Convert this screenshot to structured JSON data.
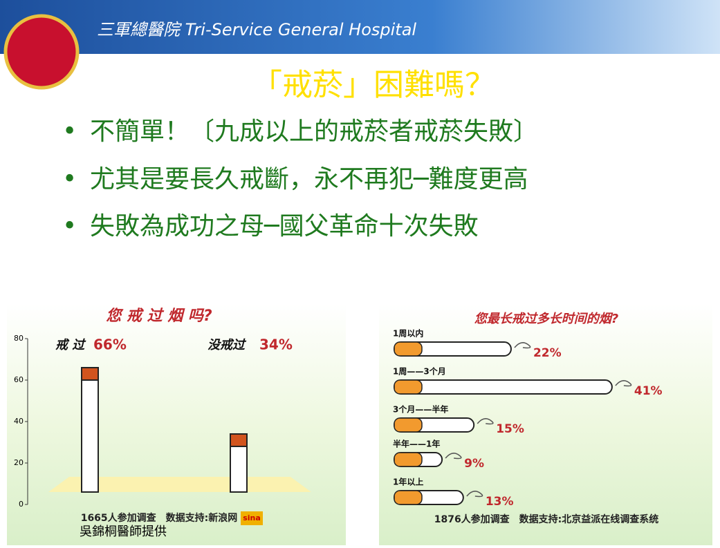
{
  "header": {
    "hospital": "三軍總醫院 Tri-Service General Hospital"
  },
  "title": "「戒菸」困難嗎？",
  "bullets": [
    "不簡單！〔九成以上的戒菸者戒菸失敗〕",
    "尤其是要長久戒斷，永不再犯─難度更高",
    "失敗為成功之母─國父革命十次失敗"
  ],
  "left_chart": {
    "type": "bar",
    "title": "您 戒 过 烟 吗?",
    "categories": [
      "戒 过",
      "没戒过"
    ],
    "values": [
      66,
      34
    ],
    "value_labels": [
      "66%",
      "34%"
    ],
    "ylim": [
      0,
      80
    ],
    "yticks": [
      0,
      20,
      40,
      60,
      80
    ],
    "footer": "1665人参加调查　数据支持:新浪网",
    "logo": "sina"
  },
  "right_chart": {
    "type": "hbar",
    "title": "您最长戒过多长时间的烟?",
    "categories": [
      "1周以内",
      "1周——3个月",
      "3个月——半年",
      "半年——1年",
      "1年以上"
    ],
    "values": [
      22,
      41,
      15,
      9,
      13
    ],
    "value_labels": [
      "22%",
      "41%",
      "15%",
      "9%",
      "13%"
    ],
    "footer": "1876人参加调查　数据支持:北京益派在线调查系统"
  },
  "credit": "吳錦桐醫師提供"
}
